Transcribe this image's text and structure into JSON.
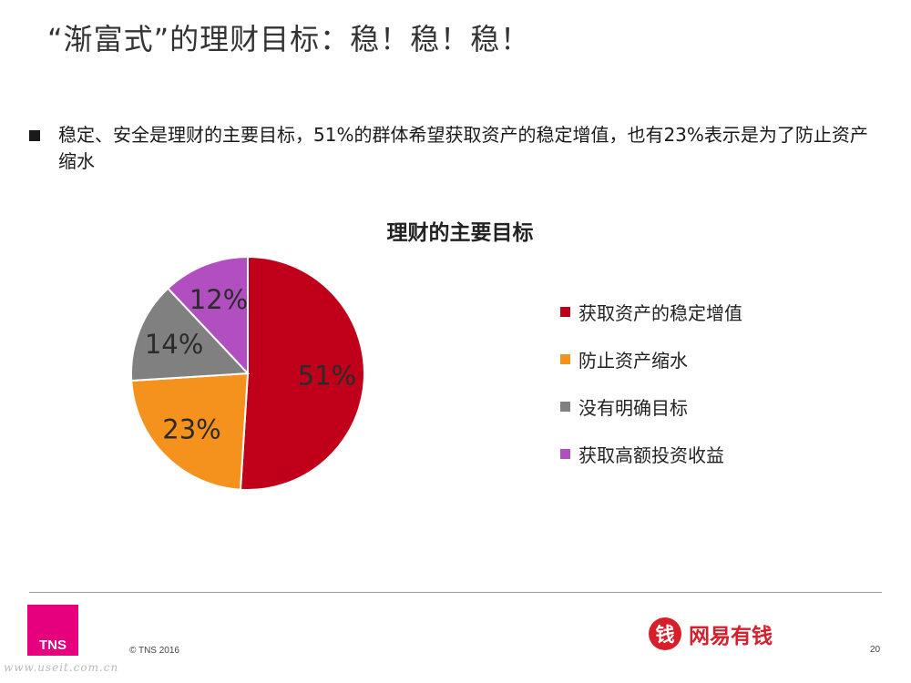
{
  "slide": {
    "title": "“渐富式”的理财目标：稳！稳！稳！",
    "bullet": "稳定、安全是理财的主要目标，51%的群体希望获取资产的稳定增值，也有23%表示是为了防止资产缩水"
  },
  "chart_data": {
    "type": "pie",
    "title": "理财的主要目标",
    "categories": [
      "获取资产的稳定增值",
      "防止资产缩水",
      "没有明确目标",
      "获取高额投资收益"
    ],
    "values": [
      51,
      23,
      14,
      12
    ],
    "labels": [
      "51%",
      "23%",
      "14%",
      "12%"
    ],
    "colors": [
      "#c0001b",
      "#f5921e",
      "#808080",
      "#b24fc0"
    ],
    "legend": "right"
  },
  "footer": {
    "logo_text": "TNS",
    "copyright": "© TNS 2016",
    "brand_mark": "钱",
    "brand_name": "网易有钱",
    "brand_color": "#d81e2a",
    "page_number": "20",
    "watermark": "www.useit.com.cn"
  }
}
